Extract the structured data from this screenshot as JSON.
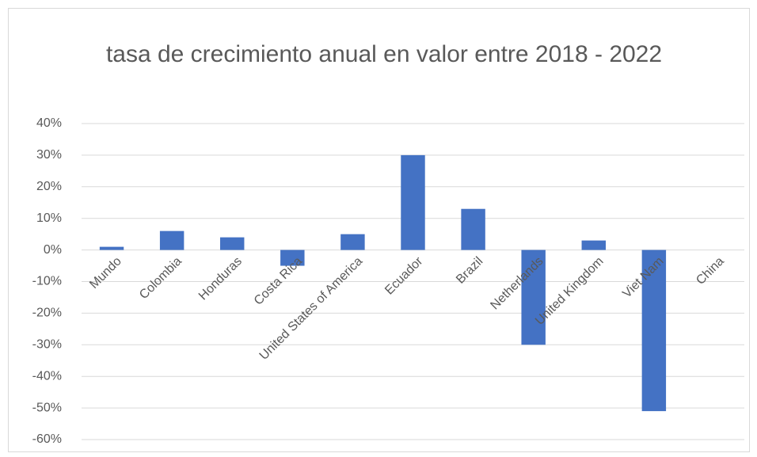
{
  "chart_data": {
    "type": "bar",
    "title": "tasa de crecimiento anual en valor entre 2018 - 2022",
    "categories": [
      "Mundo",
      "Colombia",
      "Honduras",
      "Costa Rica",
      "United States of America",
      "Ecuador",
      "Brazil",
      "Netherlands",
      "United Kingdom",
      "Viet Nam",
      "China"
    ],
    "values": [
      1,
      6,
      4,
      -5,
      5,
      30,
      13,
      -30,
      3,
      -51,
      0
    ],
    "color": "#4472c4",
    "ylim": [
      -60,
      40
    ],
    "yticks": [
      {
        "value": -60,
        "label": "-60%"
      },
      {
        "value": -50,
        "label": "-50%"
      },
      {
        "value": -40,
        "label": "-40%"
      },
      {
        "value": -30,
        "label": "-30%"
      },
      {
        "value": -20,
        "label": "-20%"
      },
      {
        "value": -10,
        "label": "-10%"
      },
      {
        "value": 0,
        "label": "0%"
      },
      {
        "value": 10,
        "label": "10%"
      },
      {
        "value": 20,
        "label": "20%"
      },
      {
        "value": 30,
        "label": "30%"
      },
      {
        "value": 40,
        "label": "40%"
      }
    ],
    "grid": true
  }
}
